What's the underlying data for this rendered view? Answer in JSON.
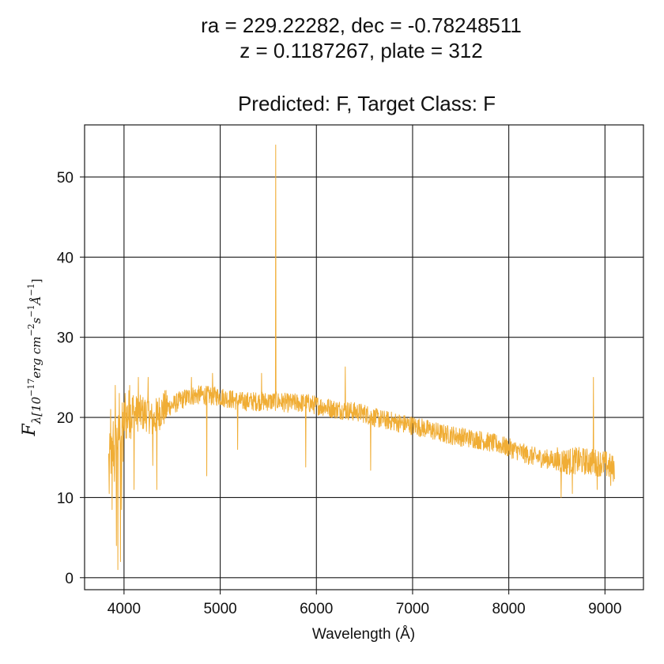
{
  "chart_data": {
    "type": "line",
    "title_lines": [
      "ra = 229.22282, dec = -0.78248511",
      "z = 0.1187267, plate = 312",
      "",
      "Predicted: F, Target Class: F"
    ],
    "xlabel": "Wavelength (Å)",
    "ylabel": {
      "main": "F",
      "sub": "λ[10",
      "exp1": "−17",
      "mid": "erg cm",
      "exp2": "−2",
      "mid2": "s",
      "exp3": "−1",
      "mid3": "Å",
      "exp4": "−1",
      "end": "]"
    },
    "xlim": [
      3590,
      9400
    ],
    "ylim": [
      -1.5,
      56.5
    ],
    "xticks": [
      4000,
      5000,
      6000,
      7000,
      8000,
      9000
    ],
    "yticks": [
      0,
      10,
      20,
      30,
      40,
      50
    ],
    "grid": true,
    "line_color": "#f0ad35",
    "series": [
      {
        "x_range": [
          3840,
          9100
        ],
        "anchors": [
          [
            3840,
            14.5
          ],
          [
            3880,
            15.5
          ],
          [
            3920,
            17.0
          ],
          [
            3960,
            18.0
          ],
          [
            4000,
            19.5
          ],
          [
            4050,
            20.5
          ],
          [
            4100,
            20.5
          ],
          [
            4150,
            20.5
          ],
          [
            4200,
            20.5
          ],
          [
            4250,
            20.5
          ],
          [
            4300,
            19.5
          ],
          [
            4350,
            20.5
          ],
          [
            4400,
            21.0
          ],
          [
            4500,
            21.5
          ],
          [
            4600,
            22.2
          ],
          [
            4700,
            22.7
          ],
          [
            4800,
            22.8
          ],
          [
            4900,
            22.7
          ],
          [
            5000,
            22.6
          ],
          [
            5100,
            22.3
          ],
          [
            5200,
            22.0
          ],
          [
            5300,
            22.0
          ],
          [
            5400,
            22.0
          ],
          [
            5500,
            22.0
          ],
          [
            5600,
            22.0
          ],
          [
            5700,
            21.8
          ],
          [
            5800,
            21.8
          ],
          [
            5900,
            21.8
          ],
          [
            6000,
            21.5
          ],
          [
            6100,
            21.3
          ],
          [
            6200,
            21.0
          ],
          [
            6300,
            20.9
          ],
          [
            6400,
            20.7
          ],
          [
            6500,
            20.5
          ],
          [
            6600,
            20.0
          ],
          [
            6700,
            19.7
          ],
          [
            6800,
            19.5
          ],
          [
            6900,
            19.2
          ],
          [
            7000,
            19.0
          ],
          [
            7100,
            18.7
          ],
          [
            7200,
            18.4
          ],
          [
            7300,
            18.0
          ],
          [
            7400,
            17.8
          ],
          [
            7500,
            17.6
          ],
          [
            7600,
            17.4
          ],
          [
            7700,
            17.2
          ],
          [
            7800,
            16.9
          ],
          [
            7900,
            16.6
          ],
          [
            8000,
            16.2
          ],
          [
            8100,
            15.8
          ],
          [
            8200,
            15.3
          ],
          [
            8300,
            15.0
          ],
          [
            8400,
            14.8
          ],
          [
            8500,
            14.6
          ],
          [
            8600,
            14.5
          ],
          [
            8700,
            14.6
          ],
          [
            8800,
            14.5
          ],
          [
            8900,
            14.4
          ],
          [
            9000,
            14.2
          ],
          [
            9100,
            13.5
          ]
        ],
        "spikes": [
          [
            3845,
            10.5
          ],
          [
            3862,
            21.0
          ],
          [
            3875,
            8.5
          ],
          [
            3888,
            19.5
          ],
          [
            3900,
            12.0
          ],
          [
            3910,
            24.0
          ],
          [
            3920,
            4.0
          ],
          [
            3935,
            1.0
          ],
          [
            3950,
            23.0
          ],
          [
            3962,
            2.0
          ],
          [
            3975,
            8.5
          ],
          [
            3990,
            14.5
          ],
          [
            4010,
            23.0
          ],
          [
            4060,
            24.0
          ],
          [
            4105,
            11.0
          ],
          [
            4150,
            25.0
          ],
          [
            4200,
            21.0
          ],
          [
            4250,
            25.0
          ],
          [
            4300,
            14.0
          ],
          [
            4340,
            11.0
          ],
          [
            4700,
            25.0
          ],
          [
            4861,
            12.7
          ],
          [
            4920,
            25.5
          ],
          [
            5180,
            16.0
          ],
          [
            5430,
            25.5
          ],
          [
            5577,
            54.0
          ],
          [
            5890,
            13.8
          ],
          [
            6300,
            26.3
          ],
          [
            6563,
            13.4
          ],
          [
            8545,
            10.0
          ],
          [
            8660,
            10.5
          ],
          [
            8880,
            25.0
          ],
          [
            8920,
            11.0
          ],
          [
            9060,
            11.5
          ]
        ]
      }
    ]
  },
  "logo_colors": {}
}
